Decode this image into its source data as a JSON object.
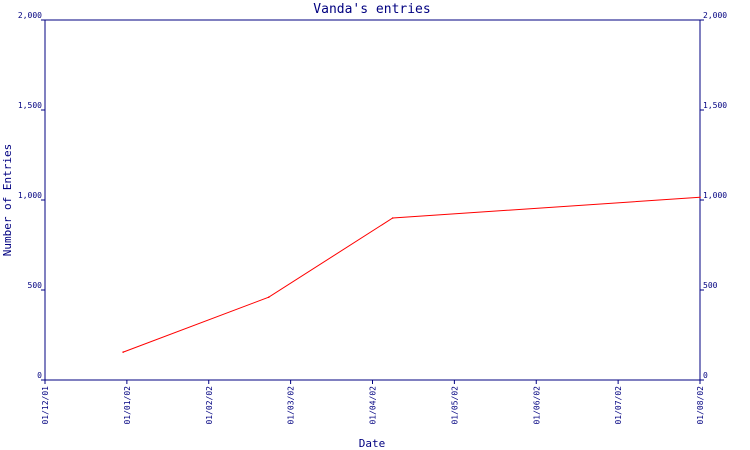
{
  "chart_data": {
    "type": "line",
    "title": "Vanda's entries",
    "xlabel": "Date",
    "ylabel": "Number of Entries",
    "x_tick_labels": [
      "01/12/01",
      "01/01/02",
      "01/02/02",
      "01/03/02",
      "01/04/02",
      "01/05/02",
      "01/06/02",
      "01/07/02",
      "01/08/02"
    ],
    "y_tick_labels": [
      "0",
      "500",
      "1,000",
      "1,500",
      "2,000"
    ],
    "ylim": [
      0,
      2000
    ],
    "y_ticks": [
      0,
      500,
      1000,
      1500,
      2000
    ],
    "xlim": [
      "2001-12-01",
      "2002-08-01"
    ],
    "series": [
      {
        "x": [
          "2001-12-30",
          "2002-02-22",
          "2002-04-09",
          "2002-08-01"
        ],
        "y": [
          155,
          460,
          900,
          1015
        ]
      }
    ],
    "colors": {
      "axis": "#000080",
      "line": "#ff0000",
      "background": "#ffffff"
    },
    "grid": false
  }
}
